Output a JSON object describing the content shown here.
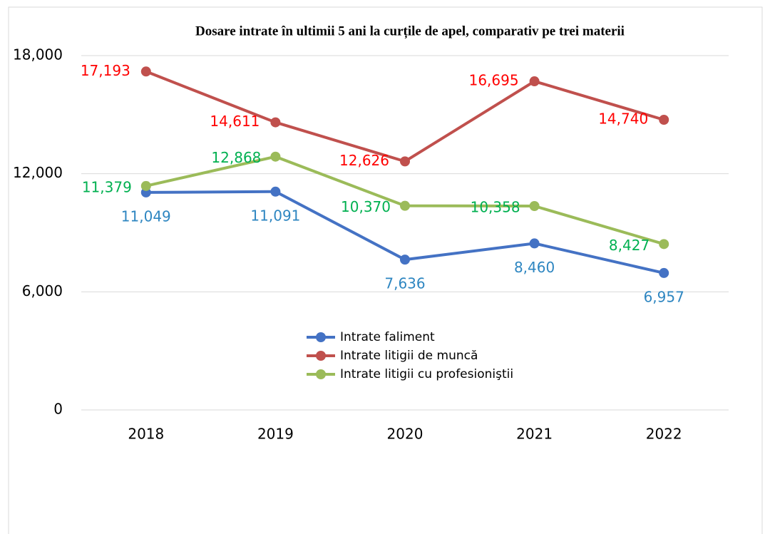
{
  "chart_data": {
    "type": "line",
    "title": "Dosare intrate în ultimii 5 ani la curțile de apel, comparativ pe trei materii",
    "categories": [
      "2018",
      "2019",
      "2020",
      "2021",
      "2022"
    ],
    "series": [
      {
        "name": "Intrate faliment",
        "color": "#4472c4",
        "label_color": "#2e86c1",
        "values": [
          11049,
          11091,
          7636,
          8460,
          6957
        ],
        "value_labels": [
          "11,049",
          "11,091",
          "7,636",
          "8,460",
          "6,957"
        ]
      },
      {
        "name": "Intrate litigii de muncă",
        "color": "#c0504d",
        "label_color": "#ff0000",
        "values": [
          17193,
          14611,
          12626,
          16695,
          14740
        ],
        "value_labels": [
          "17,193",
          "14,611",
          "12,626",
          "16,695",
          "14,740"
        ]
      },
      {
        "name": "Intrate litigii cu profesioniştii",
        "color": "#9bbb59",
        "label_color": "#00b050",
        "values": [
          11379,
          12868,
          10370,
          10358,
          8427
        ],
        "value_labels": [
          "11,379",
          "12,868",
          "10,370",
          "10,358",
          "8,427"
        ]
      }
    ],
    "ylim": [
      0,
      18000
    ],
    "yticks": [
      0,
      {
        "value": 6000,
        "label": "6,000"
      },
      {
        "value": 12000,
        "label": "12,000"
      },
      {
        "value": 18000,
        "label": "18,000"
      }
    ],
    "grid": true
  }
}
